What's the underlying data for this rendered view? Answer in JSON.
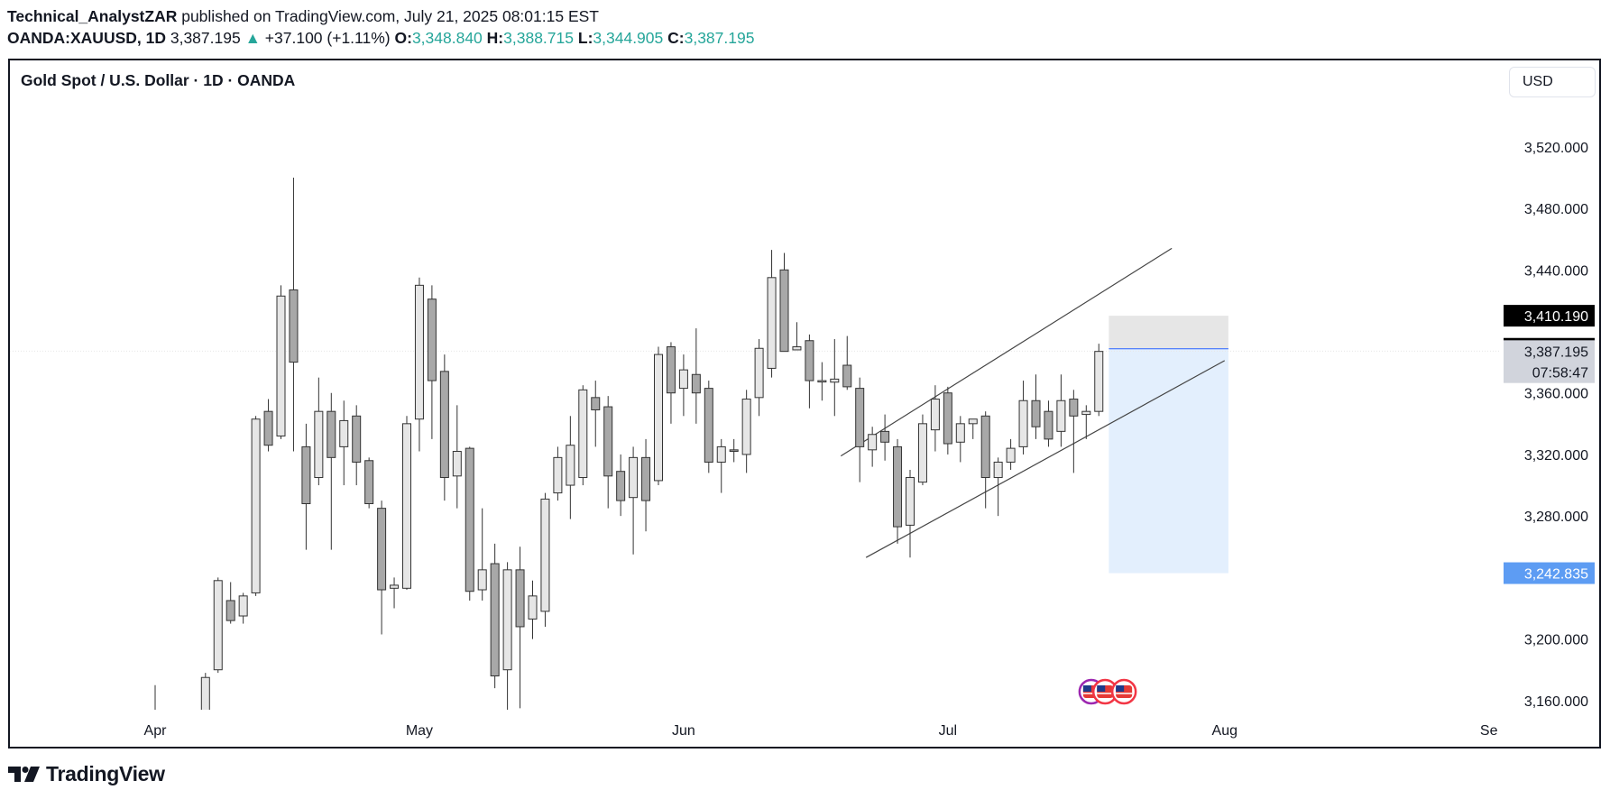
{
  "header": {
    "author": "Technical_AnalystZAR",
    "published_text": "published on TradingView.com, July 21, 2025 08:01:15 EST",
    "symbol": "OANDA:XAUUSD, 1D",
    "last": "3,387.195",
    "change": "+37.100 (+1.11%)",
    "o_label": "O:",
    "o_value": "3,348.840",
    "h_label": "H:",
    "h_value": "3,388.715",
    "l_label": "L:",
    "l_value": "3,344.905",
    "c_label": "C:",
    "c_value": "3,387.195"
  },
  "chart_title": "Gold Spot / U.S. Dollar · 1D · OANDA",
  "currency_button": "USD",
  "footer": {
    "brand": "TradingView"
  },
  "colors": {
    "teal": "#26a69a",
    "candle_up": "#e6e6e6",
    "candle_down": "#a8a8a8",
    "border": "#131722",
    "target_zone": "#e3effd",
    "stop_zone": "#e6e6e6",
    "blue_label": "#5d9cf3"
  },
  "chart_data": {
    "type": "candlestick",
    "title": "Gold Spot / U.S. Dollar · 1D · OANDA",
    "y_tick_labels": [
      "3,520.000",
      "3,480.000",
      "3,440.000",
      "3,360.000",
      "3,320.000",
      "3,280.000",
      "3,200.000",
      "3,160.000"
    ],
    "y_tick_values": [
      3520,
      3480,
      3440,
      3360,
      3320,
      3280,
      3200,
      3160
    ],
    "x_tick_labels": [
      "Apr",
      "May",
      "Jun",
      "Jul",
      "Aug",
      "Se"
    ],
    "x_tick_positions": [
      0,
      21,
      42,
      63,
      85,
      106
    ],
    "ylim": [
      3123,
      3530
    ],
    "price_labels": [
      {
        "text": "3,410.190",
        "value": 3410.19,
        "style": "black"
      },
      {
        "text": "3,388.715",
        "value": 3388.715,
        "style": "black"
      },
      {
        "text": "3,387.195",
        "value": 3387.195,
        "style": "gray"
      },
      {
        "text": "07:58:47",
        "value": 3373.5,
        "style": "gray"
      },
      {
        "text": "3,242.835",
        "value": 3242.835,
        "style": "blue"
      }
    ],
    "candles": [
      {
        "i": -3,
        "o": 3125,
        "h": 3127,
        "l": 3123,
        "c": 3124
      },
      {
        "i": -2,
        "o": 3126,
        "h": 3152,
        "l": 3123,
        "c": 3125
      },
      {
        "i": -1,
        "o": 3124,
        "h": 3148,
        "l": 3123,
        "c": 3127
      },
      {
        "i": 0,
        "o": 3130,
        "h": 3170,
        "l": 3123,
        "c": 3125
      },
      {
        "i": 1,
        "o": 3124,
        "h": 3135,
        "l": 3123,
        "c": 3128
      },
      {
        "i": 4,
        "o": 3125,
        "h": 3178,
        "l": 3123,
        "c": 3175
      },
      {
        "i": 5,
        "o": 3180,
        "h": 3240,
        "l": 3178,
        "c": 3238
      },
      {
        "i": 6,
        "o": 3225,
        "h": 3237,
        "l": 3210,
        "c": 3212
      },
      {
        "i": 7,
        "o": 3215,
        "h": 3230,
        "l": 3210,
        "c": 3228
      },
      {
        "i": 8,
        "o": 3230,
        "h": 3345,
        "l": 3228,
        "c": 3343
      },
      {
        "i": 9,
        "o": 3348,
        "h": 3356,
        "l": 3322,
        "c": 3326
      },
      {
        "i": 10,
        "o": 3332,
        "h": 3430,
        "l": 3330,
        "c": 3423
      },
      {
        "i": 11,
        "o": 3427,
        "h": 3500,
        "l": 3322,
        "c": 3380
      },
      {
        "i": 12,
        "o": 3325,
        "h": 3340,
        "l": 3258,
        "c": 3288
      },
      {
        "i": 13,
        "o": 3305,
        "h": 3370,
        "l": 3300,
        "c": 3348
      },
      {
        "i": 14,
        "o": 3348,
        "h": 3360,
        "l": 3258,
        "c": 3318
      },
      {
        "i": 15,
        "o": 3325,
        "h": 3355,
        "l": 3300,
        "c": 3342
      },
      {
        "i": 16,
        "o": 3345,
        "h": 3352,
        "l": 3300,
        "c": 3315
      },
      {
        "i": 17,
        "o": 3316,
        "h": 3318,
        "l": 3285,
        "c": 3288
      },
      {
        "i": 18,
        "o": 3285,
        "h": 3290,
        "l": 3203,
        "c": 3232
      },
      {
        "i": 19,
        "o": 3233,
        "h": 3240,
        "l": 3220,
        "c": 3235
      },
      {
        "i": 20,
        "o": 3233,
        "h": 3345,
        "l": 3232,
        "c": 3340
      },
      {
        "i": 21,
        "o": 3343,
        "h": 3435,
        "l": 3322,
        "c": 3430
      },
      {
        "i": 22,
        "o": 3421,
        "h": 3430,
        "l": 3330,
        "c": 3368
      },
      {
        "i": 23,
        "o": 3374,
        "h": 3385,
        "l": 3290,
        "c": 3305
      },
      {
        "i": 24,
        "o": 3306,
        "h": 3352,
        "l": 3285,
        "c": 3322
      },
      {
        "i": 25,
        "o": 3324,
        "h": 3325,
        "l": 3225,
        "c": 3231
      },
      {
        "i": 26,
        "o": 3232,
        "h": 3285,
        "l": 3225,
        "c": 3245
      },
      {
        "i": 27,
        "o": 3249,
        "h": 3262,
        "l": 3168,
        "c": 3176
      },
      {
        "i": 28,
        "o": 3180,
        "h": 3250,
        "l": 3123,
        "c": 3245
      },
      {
        "i": 29,
        "o": 3245,
        "h": 3260,
        "l": 3155,
        "c": 3208
      },
      {
        "i": 30,
        "o": 3213,
        "h": 3238,
        "l": 3200,
        "c": 3228
      },
      {
        "i": 31,
        "o": 3218,
        "h": 3295,
        "l": 3208,
        "c": 3291
      },
      {
        "i": 32,
        "o": 3295,
        "h": 3325,
        "l": 3290,
        "c": 3318
      },
      {
        "i": 33,
        "o": 3300,
        "h": 3345,
        "l": 3278,
        "c": 3326
      },
      {
        "i": 34,
        "o": 3305,
        "h": 3365,
        "l": 3300,
        "c": 3362
      },
      {
        "i": 35,
        "o": 3357,
        "h": 3368,
        "l": 3325,
        "c": 3349
      },
      {
        "i": 36,
        "o": 3351,
        "h": 3358,
        "l": 3285,
        "c": 3306
      },
      {
        "i": 37,
        "o": 3309,
        "h": 3320,
        "l": 3280,
        "c": 3290
      },
      {
        "i": 38,
        "o": 3292,
        "h": 3325,
        "l": 3255,
        "c": 3318
      },
      {
        "i": 39,
        "o": 3318,
        "h": 3330,
        "l": 3270,
        "c": 3290
      },
      {
        "i": 40,
        "o": 3303,
        "h": 3390,
        "l": 3300,
        "c": 3385
      },
      {
        "i": 41,
        "o": 3390,
        "h": 3393,
        "l": 3340,
        "c": 3360
      },
      {
        "i": 42,
        "o": 3363,
        "h": 3385,
        "l": 3345,
        "c": 3375
      },
      {
        "i": 43,
        "o": 3372,
        "h": 3402,
        "l": 3340,
        "c": 3360
      },
      {
        "i": 44,
        "o": 3363,
        "h": 3368,
        "l": 3308,
        "c": 3315
      },
      {
        "i": 45,
        "o": 3315,
        "h": 3330,
        "l": 3295,
        "c": 3325
      },
      {
        "i": 46,
        "o": 3323,
        "h": 3330,
        "l": 3315,
        "c": 3322
      },
      {
        "i": 47,
        "o": 3320,
        "h": 3362,
        "l": 3308,
        "c": 3356
      },
      {
        "i": 48,
        "o": 3357,
        "h": 3395,
        "l": 3345,
        "c": 3389
      },
      {
        "i": 49,
        "o": 3376,
        "h": 3453,
        "l": 3370,
        "c": 3435
      },
      {
        "i": 50,
        "o": 3440,
        "h": 3451,
        "l": 3388,
        "c": 3387
      },
      {
        "i": 51,
        "o": 3388,
        "h": 3406,
        "l": 3388,
        "c": 3390
      },
      {
        "i": 52,
        "o": 3394,
        "h": 3398,
        "l": 3350,
        "c": 3368
      },
      {
        "i": 53,
        "o": 3368,
        "h": 3380,
        "l": 3355,
        "c": 3368
      },
      {
        "i": 54,
        "o": 3367,
        "h": 3395,
        "l": 3345,
        "c": 3369
      },
      {
        "i": 55,
        "o": 3378,
        "h": 3397,
        "l": 3362,
        "c": 3364
      },
      {
        "i": 56,
        "o": 3363,
        "h": 3370,
        "l": 3302,
        "c": 3325
      },
      {
        "i": 57,
        "o": 3323,
        "h": 3338,
        "l": 3312,
        "c": 3333
      },
      {
        "i": 58,
        "o": 3335,
        "h": 3346,
        "l": 3316,
        "c": 3328
      },
      {
        "i": 59,
        "o": 3325,
        "h": 3330,
        "l": 3262,
        "c": 3273
      },
      {
        "i": 60,
        "o": 3274,
        "h": 3310,
        "l": 3253,
        "c": 3305
      },
      {
        "i": 61,
        "o": 3302,
        "h": 3346,
        "l": 3300,
        "c": 3340
      },
      {
        "i": 62,
        "o": 3336,
        "h": 3365,
        "l": 3322,
        "c": 3356
      },
      {
        "i": 63,
        "o": 3360,
        "h": 3364,
        "l": 3320,
        "c": 3327
      },
      {
        "i": 64,
        "o": 3328,
        "h": 3345,
        "l": 3315,
        "c": 3340
      },
      {
        "i": 65,
        "o": 3340,
        "h": 3342,
        "l": 3330,
        "c": 3343
      },
      {
        "i": 66,
        "o": 3345,
        "h": 3348,
        "l": 3285,
        "c": 3305
      },
      {
        "i": 67,
        "o": 3305,
        "h": 3318,
        "l": 3280,
        "c": 3315
      },
      {
        "i": 68,
        "o": 3315,
        "h": 3330,
        "l": 3310,
        "c": 3324
      },
      {
        "i": 69,
        "o": 3325,
        "h": 3368,
        "l": 3320,
        "c": 3355
      },
      {
        "i": 70,
        "o": 3355,
        "h": 3372,
        "l": 3330,
        "c": 3338
      },
      {
        "i": 71,
        "o": 3348,
        "h": 3355,
        "l": 3325,
        "c": 3330
      },
      {
        "i": 72,
        "o": 3335,
        "h": 3372,
        "l": 3325,
        "c": 3355
      },
      {
        "i": 73,
        "o": 3356,
        "h": 3362,
        "l": 3308,
        "c": 3345
      },
      {
        "i": 74,
        "o": 3346,
        "h": 3352,
        "l": 3330,
        "c": 3348
      },
      {
        "i": 75,
        "o": 3348,
        "h": 3392,
        "l": 3345,
        "c": 3387
      }
    ],
    "trendlines": [
      {
        "from": {
          "i": 54.5,
          "y": 3319
        },
        "to": {
          "i": 80.8,
          "y": 3454
        }
      },
      {
        "from": {
          "i": 56.5,
          "y": 3253
        },
        "to": {
          "i": 85.0,
          "y": 3381
        }
      }
    ],
    "position_zones": [
      {
        "type": "stop",
        "from_i": 75.8,
        "to_i": 85.3,
        "top": 3410.19,
        "bottom": 3388.715
      },
      {
        "type": "target",
        "from_i": 75.8,
        "to_i": 85.3,
        "top": 3388.715,
        "bottom": 3242.835
      }
    ],
    "event_markers": [
      {
        "i": 74.4
      },
      {
        "i": 75.5
      },
      {
        "i": 77.0
      }
    ]
  }
}
